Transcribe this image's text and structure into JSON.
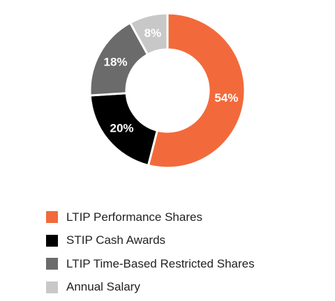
{
  "chart_data": {
    "type": "pie",
    "style": "donut",
    "categories": [
      "LTIP Performance Shares",
      "STIP Cash Awards",
      "LTIP Time-Based Restricted Shares",
      "Annual Salary"
    ],
    "values": [
      54,
      20,
      18,
      8
    ],
    "value_labels": [
      "54%",
      "20%",
      "18%",
      "8%"
    ],
    "colors": [
      "#f26a3b",
      "#000000",
      "#6b6b6b",
      "#c8c8c8"
    ],
    "label_colors": [
      "#ffffff",
      "#ffffff",
      "#ffffff",
      "#ffffff"
    ],
    "start_angle_deg": 0,
    "direction": "clockwise",
    "legend_position": "bottom",
    "title": ""
  }
}
